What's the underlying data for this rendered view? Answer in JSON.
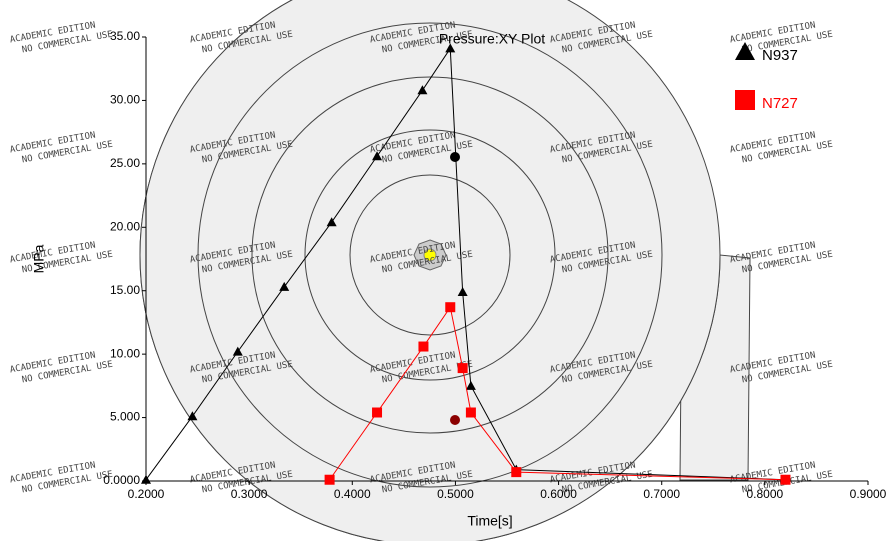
{
  "chart_data": {
    "type": "line",
    "title": "Pressure:XY Plot",
    "x_label": "Time[s]",
    "y_label": "MPa",
    "watermark": [
      "ACADEMIC EDITION",
      "NO COMMERCIAL USE"
    ],
    "xlim": [
      0.2,
      0.9
    ],
    "xticks": [
      {
        "value": 0.2,
        "label": "0.2000"
      },
      {
        "value": 0.3,
        "label": "0.3000"
      },
      {
        "value": 0.4,
        "label": "0.4000"
      },
      {
        "value": 0.5,
        "label": "0.5000"
      },
      {
        "value": 0.6,
        "label": "0.6000"
      },
      {
        "value": 0.7,
        "label": "0.7000"
      },
      {
        "value": 0.8,
        "label": "0.8000"
      },
      {
        "value": 0.9,
        "label": "0.9000"
      }
    ],
    "ylim": [
      0,
      35
    ],
    "yticks": [
      {
        "value": 0,
        "label": "0.0000"
      },
      {
        "value": 5,
        "label": "5.000"
      },
      {
        "value": 10,
        "label": "10.00"
      },
      {
        "value": 15,
        "label": "15.00"
      },
      {
        "value": 20,
        "label": "20.00"
      },
      {
        "value": 25,
        "label": "25.00"
      },
      {
        "value": 30,
        "label": "30.00"
      },
      {
        "value": 35,
        "label": "35.00"
      }
    ],
    "legend": "top-right",
    "series": [
      {
        "name": "N937",
        "color": "#000000",
        "marker": "triangle",
        "x": [
          0.2,
          0.245,
          0.289,
          0.334,
          0.38,
          0.424,
          0.468,
          0.495,
          0.507,
          0.515,
          0.559,
          0.82
        ],
        "values": [
          0.1,
          5.1,
          10.2,
          15.3,
          20.4,
          25.6,
          30.8,
          34.1,
          14.9,
          7.5,
          0.9,
          0.1
        ]
      },
      {
        "name": "N727",
        "color": "#ff0000",
        "marker": "square",
        "x": [
          0.378,
          0.424,
          0.469,
          0.495,
          0.507,
          0.515,
          0.559,
          0.82
        ],
        "values": [
          0.1,
          5.4,
          10.6,
          13.7,
          8.9,
          5.4,
          0.7,
          0.1
        ]
      }
    ]
  }
}
